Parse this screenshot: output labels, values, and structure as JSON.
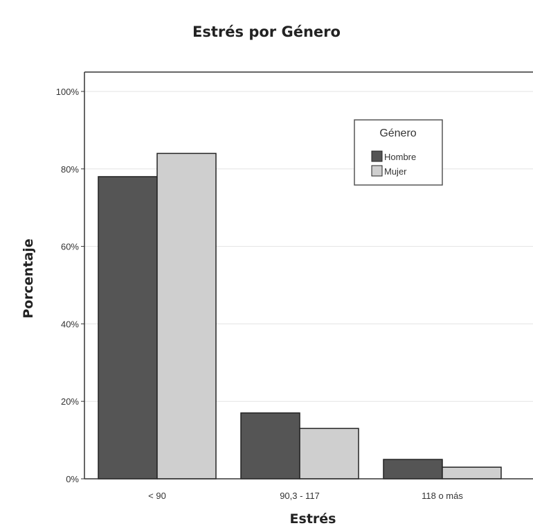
{
  "chart_data": {
    "type": "bar",
    "title": "Estrés por Género",
    "xlabel": "Estrés",
    "ylabel": "Porcentaje",
    "categories": [
      "< 90",
      "90,3 - 117",
      "118 o más"
    ],
    "series": [
      {
        "name": "Hombre",
        "values": [
          78,
          17,
          5
        ],
        "color": "#555555"
      },
      {
        "name": "Mujer",
        "values": [
          84,
          13,
          3
        ],
        "color": "#cfcfcf"
      }
    ],
    "ylim": [
      0,
      100
    ],
    "yticks": [
      0,
      20,
      40,
      60,
      80,
      100
    ],
    "ytick_labels": [
      "0%",
      "20%",
      "40%",
      "60%",
      "80%",
      "100%"
    ],
    "grid": true,
    "legend": {
      "title": "Género",
      "position": "top-right"
    }
  }
}
